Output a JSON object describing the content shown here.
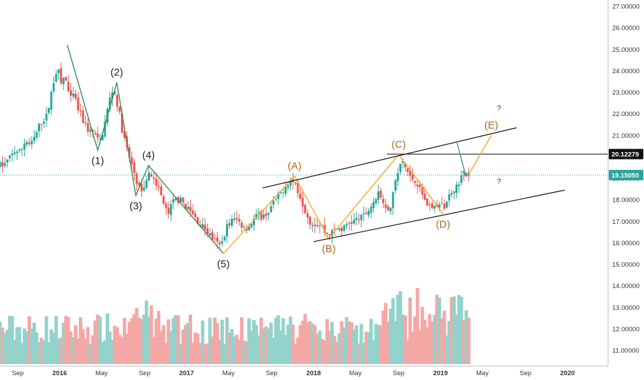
{
  "chart_data": {
    "type": "candlestick",
    "x_range": [
      "2015-07",
      "2020-04"
    ],
    "y_range": [
      10.5,
      27.2
    ],
    "y_ticks": [
      "11.00000",
      "12.00000",
      "13.00000",
      "14.00000",
      "15.00000",
      "16.00000",
      "17.00000",
      "18.00000",
      "19.00000",
      "20.00000",
      "21.00000",
      "22.00000",
      "23.00000",
      "24.00000",
      "25.00000",
      "26.00000",
      "27.00000"
    ],
    "x_ticks": [
      {
        "label": "Sep",
        "t": 2015.67
      },
      {
        "label": "2016",
        "t": 2016.0
      },
      {
        "label": "May",
        "t": 2016.33
      },
      {
        "label": "Sep",
        "t": 2016.67
      },
      {
        "label": "2017",
        "t": 2017.0
      },
      {
        "label": "May",
        "t": 2017.33
      },
      {
        "label": "Sep",
        "t": 2017.67
      },
      {
        "label": "2018",
        "t": 2018.0
      },
      {
        "label": "May",
        "t": 2018.33
      },
      {
        "label": "Sep",
        "t": 2018.67
      },
      {
        "label": "2019",
        "t": 2019.0
      },
      {
        "label": "May",
        "t": 2019.33
      },
      {
        "label": "Sep",
        "t": 2019.67
      },
      {
        "label": "2020",
        "t": 2020.0
      }
    ],
    "price_labels": [
      {
        "text": "20.12279",
        "value": 20.12279,
        "style": "dark"
      },
      {
        "text": "19.15050",
        "value": 19.1505,
        "style": "teal"
      }
    ],
    "horizontal_line": 20.12279,
    "current_price_line": 19.1505,
    "price_path": [
      [
        2015.58,
        19.6
      ],
      [
        2015.62,
        19.9
      ],
      [
        2015.67,
        20.3
      ],
      [
        2015.71,
        20.2
      ],
      [
        2015.75,
        20.8
      ],
      [
        2015.79,
        20.5
      ],
      [
        2015.83,
        21.0
      ],
      [
        2015.87,
        21.6
      ],
      [
        2015.92,
        21.9
      ],
      [
        2015.96,
        23.2
      ],
      [
        2016.0,
        24.2
      ],
      [
        2016.03,
        23.4
      ],
      [
        2016.06,
        23.8
      ],
      [
        2016.1,
        22.6
      ],
      [
        2016.13,
        22.9
      ],
      [
        2016.17,
        22.1
      ],
      [
        2016.21,
        21.6
      ],
      [
        2016.25,
        21.2
      ],
      [
        2016.29,
        21.1
      ],
      [
        2016.33,
        20.6
      ],
      [
        2016.37,
        21.4
      ],
      [
        2016.41,
        22.6
      ],
      [
        2016.44,
        23.2
      ],
      [
        2016.48,
        22.3
      ],
      [
        2016.52,
        21.0
      ],
      [
        2016.56,
        20.1
      ],
      [
        2016.6,
        19.4
      ],
      [
        2016.63,
        18.8
      ],
      [
        2016.67,
        18.2
      ],
      [
        2016.71,
        19.2
      ],
      [
        2016.75,
        19.2
      ],
      [
        2016.79,
        18.7
      ],
      [
        2016.83,
        17.9
      ],
      [
        2016.87,
        17.3
      ],
      [
        2016.92,
        18.0
      ],
      [
        2016.96,
        18.0
      ],
      [
        2017.0,
        17.8
      ],
      [
        2017.04,
        17.5
      ],
      [
        2017.08,
        17.2
      ],
      [
        2017.12,
        16.9
      ],
      [
        2017.17,
        16.6
      ],
      [
        2017.21,
        16.3
      ],
      [
        2017.25,
        16.0
      ],
      [
        2017.29,
        15.8
      ],
      [
        2017.33,
        16.7
      ],
      [
        2017.37,
        17.0
      ],
      [
        2017.41,
        17.1
      ],
      [
        2017.46,
        16.8
      ],
      [
        2017.5,
        16.7
      ],
      [
        2017.54,
        17.0
      ],
      [
        2017.58,
        17.3
      ],
      [
        2017.62,
        17.2
      ],
      [
        2017.67,
        17.5
      ],
      [
        2017.71,
        17.9
      ],
      [
        2017.75,
        18.2
      ],
      [
        2017.79,
        18.6
      ],
      [
        2017.83,
        18.9
      ],
      [
        2017.87,
        18.8
      ],
      [
        2017.92,
        18.1
      ],
      [
        2017.96,
        17.4
      ],
      [
        2018.0,
        16.9
      ],
      [
        2018.04,
        16.9
      ],
      [
        2018.08,
        16.8
      ],
      [
        2018.12,
        16.4
      ],
      [
        2018.17,
        16.5
      ],
      [
        2018.21,
        16.7
      ],
      [
        2018.25,
        16.6
      ],
      [
        2018.29,
        16.9
      ],
      [
        2018.33,
        17.0
      ],
      [
        2018.37,
        17.1
      ],
      [
        2018.41,
        17.2
      ],
      [
        2018.46,
        17.6
      ],
      [
        2018.5,
        18.0
      ],
      [
        2018.54,
        18.3
      ],
      [
        2018.58,
        17.8
      ],
      [
        2018.62,
        17.6
      ],
      [
        2018.67,
        19.0
      ],
      [
        2018.71,
        19.8
      ],
      [
        2018.75,
        19.4
      ],
      [
        2018.79,
        19.0
      ],
      [
        2018.83,
        18.9
      ],
      [
        2018.87,
        18.3
      ],
      [
        2018.92,
        17.8
      ],
      [
        2018.96,
        17.6
      ],
      [
        2019.0,
        17.8
      ],
      [
        2019.04,
        17.6
      ],
      [
        2019.08,
        18.1
      ],
      [
        2019.12,
        18.5
      ],
      [
        2019.17,
        18.9
      ],
      [
        2019.21,
        19.15
      ]
    ],
    "waves": [
      {
        "label": "(1)",
        "t": 2016.3,
        "v": 20.3,
        "color": "#3a8a52",
        "text_color": "#222222",
        "label_pos": "below"
      },
      {
        "label": "(2)",
        "t": 2016.45,
        "v": 23.45,
        "color": "#3a8a52",
        "text_color": "#222222",
        "label_pos": "above"
      },
      {
        "label": "(3)",
        "t": 2016.6,
        "v": 18.2,
        "color": "#3a8a52",
        "text_color": "#222222",
        "label_pos": "below"
      },
      {
        "label": "(4)",
        "t": 2016.7,
        "v": 19.6,
        "color": "#3a8a52",
        "text_color": "#222222",
        "label_pos": "above"
      },
      {
        "label": "(5)",
        "t": 2017.29,
        "v": 15.5,
        "color": "#3a8a52",
        "text_color": "#222222",
        "label_pos": "below"
      },
      {
        "label": "(A)",
        "t": 2017.85,
        "v": 19.1,
        "color": "#f5a623",
        "text_color": "#b5651d",
        "label_pos": "above"
      },
      {
        "label": "(B)",
        "t": 2018.12,
        "v": 16.2,
        "color": "#f5a623",
        "text_color": "#b5651d",
        "label_pos": "below"
      },
      {
        "label": "(C)",
        "t": 2018.67,
        "v": 20.1,
        "color": "#f5a623",
        "text_color": "#b5651d",
        "label_pos": "above"
      },
      {
        "label": "(D)",
        "t": 2019.02,
        "v": 17.35,
        "color": "#f5a623",
        "text_color": "#b5651d",
        "label_pos": "below"
      },
      {
        "label": "(E)",
        "t": 2019.4,
        "v": 21.0,
        "color": "#f5a623",
        "text_color": "#b5651d",
        "label_pos": "above"
      }
    ],
    "impulse_start": {
      "t": 2016.06,
      "v": 25.2
    },
    "wave_e_start": {
      "t": 2019.22,
      "v": 19.15
    },
    "channel_upper": [
      [
        2017.6,
        18.55
      ],
      [
        2019.6,
        21.35
      ]
    ],
    "channel_lower": [
      [
        2018.0,
        16.05
      ],
      [
        2019.98,
        18.45
      ]
    ],
    "projection_arrow": [
      [
        2019.13,
        20.65
      ],
      [
        2019.2,
        19.1
      ]
    ],
    "question_marks": [
      {
        "text": "?",
        "t": 2019.46,
        "v": 22.15
      },
      {
        "text": "?",
        "t": 2019.46,
        "v": 18.75
      }
    ],
    "volume_scale_max": 4.6,
    "volume_months_shown": "2015-07 to 2019-03",
    "colors": {
      "up": "#26a69a",
      "down": "#ef5350",
      "volume_up": "#93d3cc",
      "volume_down": "#f4a8a6",
      "impulse": "#3a8a52",
      "correction": "#f5a623",
      "arrow": "#4a9a92"
    }
  }
}
